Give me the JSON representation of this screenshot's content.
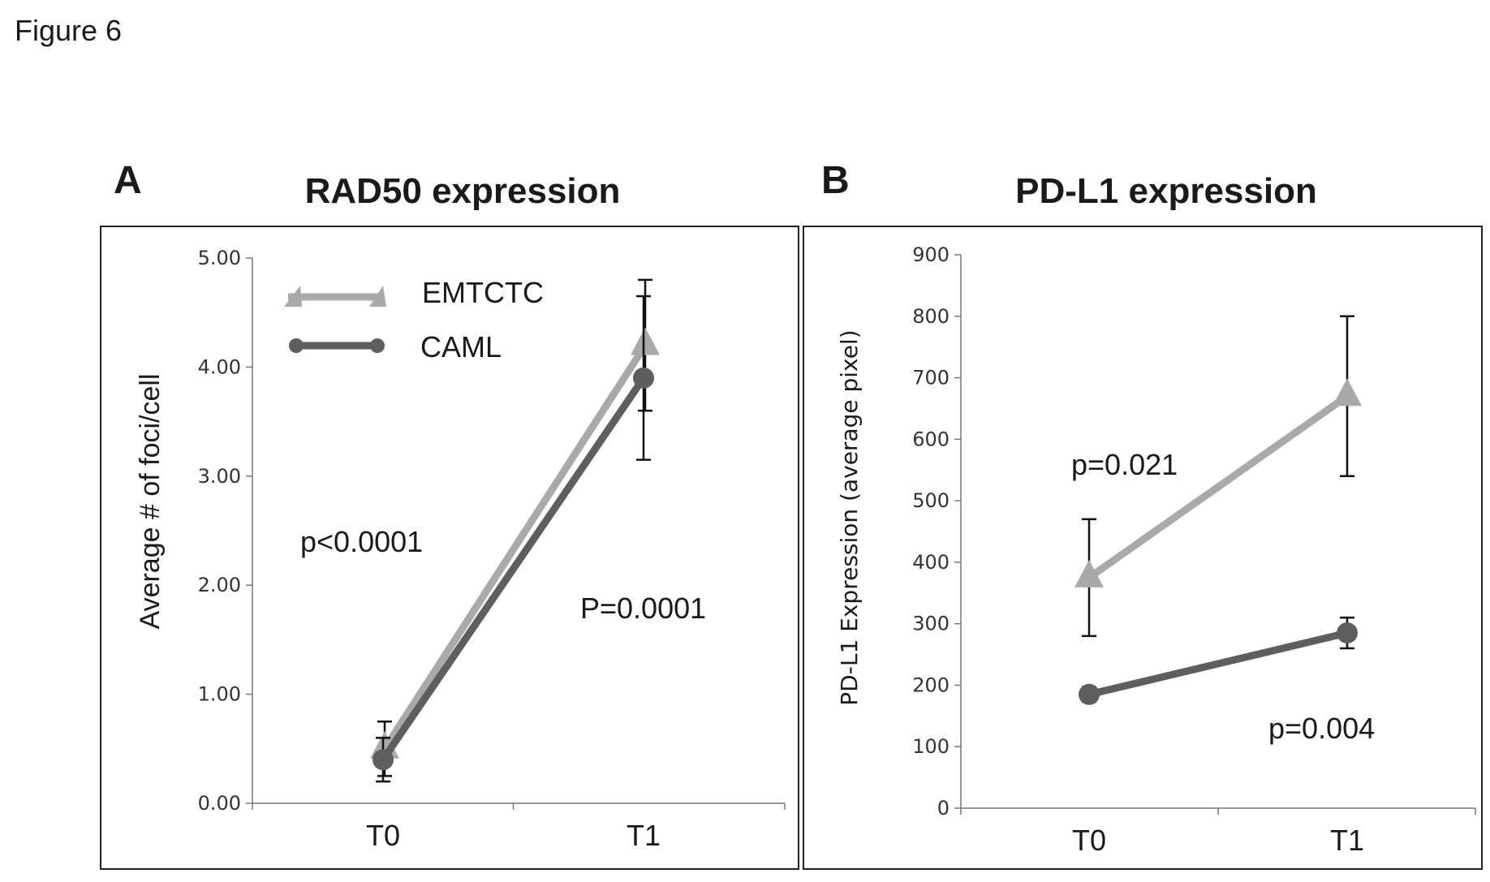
{
  "figure_title": "Figure 6",
  "colors": {
    "emtctc": "#a9a9a9",
    "caml": "#5e5e5e",
    "errorbar": "#111111",
    "frame": "#222222",
    "axis": "#777777"
  },
  "chart_data": [
    {
      "type": "line",
      "panel_letter": "A",
      "title": "RAD50 expression",
      "xlabel": "",
      "ylabel": "Average # of foci/cell",
      "categories": [
        "T0",
        "T1"
      ],
      "ylim": [
        0,
        5
      ],
      "yticks": [
        "0.00",
        "1.00",
        "2.00",
        "3.00",
        "4.00",
        "5.00"
      ],
      "legend_position": "top-left",
      "series": [
        {
          "name": "EMTCTC",
          "marker": "triangle",
          "values": [
            0.5,
            4.2
          ],
          "errors": [
            0.25,
            0.6
          ]
        },
        {
          "name": "CAML",
          "marker": "circle",
          "values": [
            0.4,
            3.9
          ],
          "errors": [
            0.2,
            0.75
          ]
        }
      ],
      "annotations": [
        {
          "text": "p<0.0001",
          "at": "T0 side"
        },
        {
          "text": "P=0.0001",
          "at": "T1 side"
        }
      ]
    },
    {
      "type": "line",
      "panel_letter": "B",
      "title": "PD-L1 expression",
      "xlabel": "",
      "ylabel": "PD-L1 Expression  (average pixel)",
      "categories": [
        "T0",
        "T1"
      ],
      "ylim": [
        0,
        900
      ],
      "yticks": [
        "0",
        "100",
        "200",
        "300",
        "400",
        "500",
        "600",
        "700",
        "800",
        "900"
      ],
      "series": [
        {
          "name": "EMTCTC",
          "marker": "triangle",
          "values": [
            375,
            670
          ],
          "errors": [
            95,
            130
          ]
        },
        {
          "name": "CAML",
          "marker": "circle",
          "values": [
            185,
            285
          ],
          "errors": [
            12,
            25
          ]
        }
      ],
      "annotations": [
        {
          "text": "p=0.021",
          "at": "upper series"
        },
        {
          "text": "p=0.004",
          "at": "lower series"
        }
      ]
    }
  ]
}
